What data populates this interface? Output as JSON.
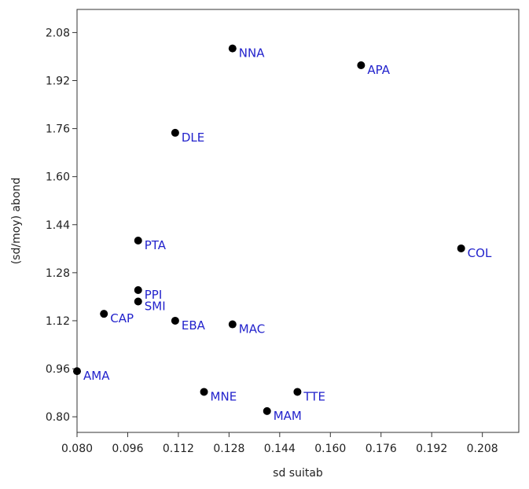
{
  "chart_data": {
    "type": "scatter",
    "title": "",
    "xlabel": "sd suitab",
    "ylabel": "(sd/moy) abond",
    "xlim": [
      0.08,
      0.2195
    ],
    "ylim": [
      0.748,
      2.157
    ],
    "x_ticks": [
      "0.080",
      "0.096",
      "0.112",
      "0.128",
      "0.144",
      "0.160",
      "0.176",
      "0.192",
      "0.208"
    ],
    "y_ticks": [
      "0.80",
      "0.96",
      "1.12",
      "1.28",
      "1.44",
      "1.60",
      "1.76",
      "1.92",
      "2.08"
    ],
    "grid": false,
    "point_color": "#000000",
    "label_color": "#2222cc",
    "points": [
      {
        "label": "NNA",
        "x": 0.1291,
        "y": 2.027
      },
      {
        "label": "APA",
        "x": 0.1697,
        "y": 1.971
      },
      {
        "label": "DLE",
        "x": 0.111,
        "y": 1.746
      },
      {
        "label": "PTA",
        "x": 0.0993,
        "y": 1.387
      },
      {
        "label": "COL",
        "x": 0.2013,
        "y": 1.361
      },
      {
        "label": "PPI",
        "x": 0.0993,
        "y": 1.222
      },
      {
        "label": "SMI",
        "x": 0.0993,
        "y": 1.184
      },
      {
        "label": "CAP",
        "x": 0.0885,
        "y": 1.143
      },
      {
        "label": "EBA",
        "x": 0.111,
        "y": 1.12
      },
      {
        "label": "MAC",
        "x": 0.1291,
        "y": 1.108
      },
      {
        "label": "AMA",
        "x": 0.08,
        "y": 0.952
      },
      {
        "label": "MNE",
        "x": 0.1201,
        "y": 0.883
      },
      {
        "label": "TTE",
        "x": 0.1496,
        "y": 0.883
      },
      {
        "label": "MAM",
        "x": 0.14,
        "y": 0.819
      }
    ]
  }
}
